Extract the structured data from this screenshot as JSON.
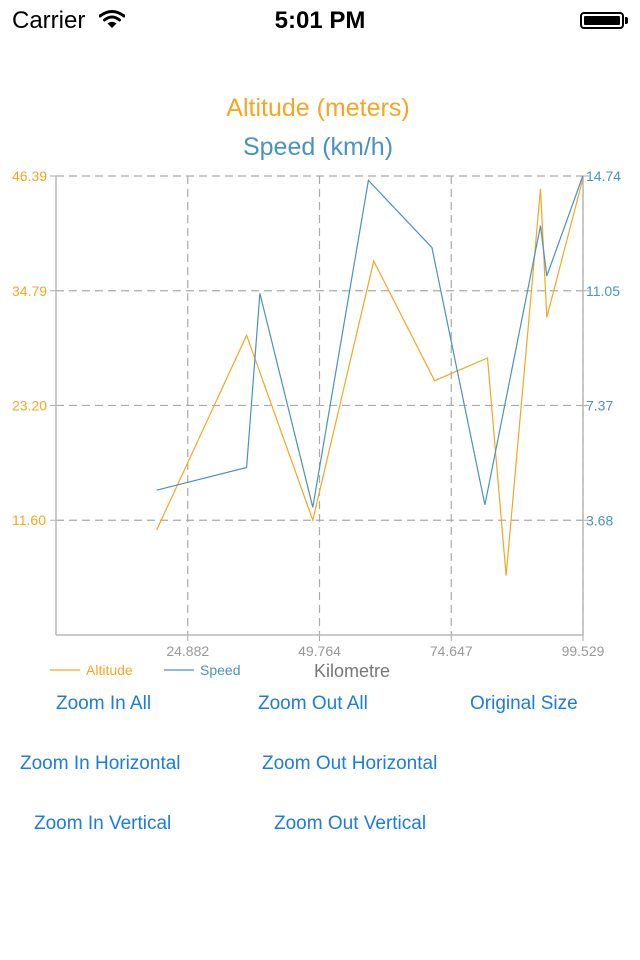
{
  "status_bar": {
    "carrier": "Carrier",
    "time": "5:01 PM",
    "icons": [
      "wifi-icon",
      "battery-icon"
    ]
  },
  "chart_data": {
    "type": "line",
    "title": "Altitude (meters)",
    "subtitle": "Speed (km/h)",
    "xlabel": "Kilometre",
    "x_ticks": [
      "24.882",
      "49.764",
      "74.647",
      "99.529"
    ],
    "x_tick_values": [
      24.882,
      49.764,
      74.647,
      99.529
    ],
    "xlim": [
      0,
      99.529
    ],
    "grid": true,
    "legend_position": "bottom-left",
    "y_left": {
      "ticks": [
        "11.60",
        "23.20",
        "34.79",
        "46.39"
      ],
      "tick_values": [
        11.6,
        23.2,
        34.79,
        46.39
      ],
      "ylim": [
        0,
        46.39
      ],
      "color": "#f5a623"
    },
    "y_right": {
      "ticks": [
        "3.68",
        "7.37",
        "11.05",
        "14.74"
      ],
      "tick_values": [
        3.68,
        7.37,
        11.05,
        14.74
      ],
      "ylim": [
        0,
        14.74
      ],
      "color": "#4a93bd"
    },
    "series": [
      {
        "name": "Altitude",
        "axis": "left",
        "color": "#f5a623",
        "x": [
          19,
          36,
          48.5,
          60,
          71.5,
          81.5,
          85,
          91.5,
          92.7,
          99.5
        ],
        "values": [
          10.6,
          30.3,
          11.6,
          37.8,
          25.7,
          28.0,
          6.0,
          45.1,
          32.1,
          46.1
        ]
      },
      {
        "name": "Speed",
        "axis": "right",
        "color": "#4a93bd",
        "x": [
          19,
          36,
          38.5,
          48.5,
          59,
          71,
          81,
          91.5,
          92.7,
          99.5
        ],
        "values": [
          4.65,
          5.38,
          10.97,
          4.1,
          14.6,
          12.44,
          4.18,
          13.14,
          11.53,
          14.74
        ]
      }
    ]
  },
  "buttons": {
    "zoom_in_all": "Zoom In All",
    "zoom_out_all": "Zoom Out All",
    "original_size": "Original Size",
    "zoom_in_horizontal": "Zoom In Horizontal",
    "zoom_out_horizontal": "Zoom Out Horizontal",
    "zoom_in_vertical": "Zoom In Vertical",
    "zoom_out_vertical": "Zoom Out Vertical"
  }
}
